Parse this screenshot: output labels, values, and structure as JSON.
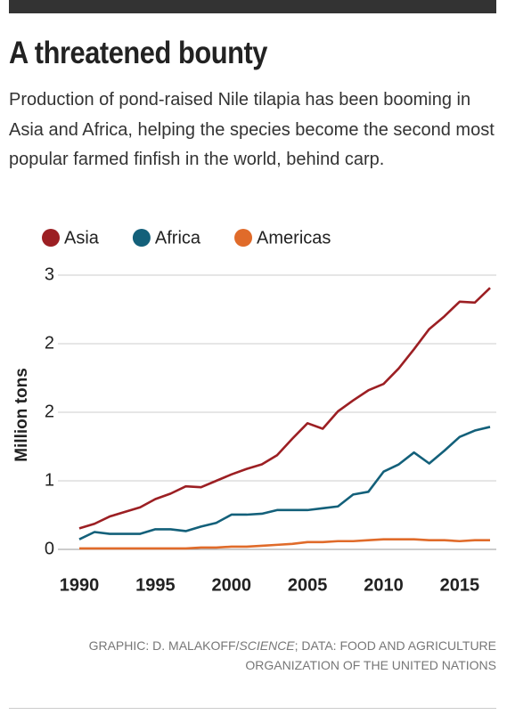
{
  "chart_data": {
    "type": "line",
    "title": "A threatened bounty",
    "subtitle": "Production of pond-raised Nile tilapia has been booming in Asia and Africa, helping the species become the second most popular farmed finfish in the world, behind carp.",
    "y_label": "Million tons",
    "credit": [
      "GRAPHIC: D. MALAKOFF/",
      "SCIENCE",
      "; DATA: FOOD AND AGRICULTURE",
      "ORGANIZATION OF THE UNITED NATIONS"
    ],
    "x": [
      1990,
      1991,
      1992,
      1993,
      1994,
      1995,
      1996,
      1997,
      1998,
      1999,
      2000,
      2001,
      2002,
      2003,
      2004,
      2005,
      2006,
      2007,
      2008,
      2009,
      2010,
      2011,
      2012,
      2013,
      2014,
      2015,
      2016,
      2017
    ],
    "series": [
      {
        "name": "Asia",
        "color": "#9c1f23",
        "values": [
          0.23,
          0.28,
          0.36,
          0.41,
          0.46,
          0.55,
          0.61,
          0.69,
          0.68,
          0.75,
          0.82,
          0.88,
          0.93,
          1.03,
          1.21,
          1.38,
          1.32,
          1.51,
          1.63,
          1.74,
          1.81,
          1.98,
          2.19,
          2.41,
          2.55,
          2.71,
          2.7,
          2.86
        ]
      },
      {
        "name": "Africa",
        "color": "#13607a",
        "values": [
          0.11,
          0.19,
          0.17,
          0.17,
          0.17,
          0.22,
          0.22,
          0.2,
          0.25,
          0.29,
          0.38,
          0.38,
          0.39,
          0.43,
          0.43,
          0.43,
          0.45,
          0.47,
          0.6,
          0.63,
          0.85,
          0.93,
          1.06,
          0.94,
          1.08,
          1.23,
          1.3,
          1.34
        ]
      },
      {
        "name": "Americas",
        "color": "#e06b2a",
        "values": [
          0.01,
          0.01,
          0.01,
          0.01,
          0.01,
          0.01,
          0.01,
          0.01,
          0.02,
          0.02,
          0.03,
          0.03,
          0.04,
          0.05,
          0.06,
          0.08,
          0.08,
          0.09,
          0.09,
          0.1,
          0.11,
          0.11,
          0.11,
          0.1,
          0.1,
          0.09,
          0.1,
          0.1
        ]
      }
    ],
    "xlim": [
      1990,
      2017
    ],
    "xticks": [
      1990,
      1995,
      2000,
      2005,
      2010,
      2015
    ],
    "ylim": [
      0,
      3
    ],
    "yticks": [
      0,
      {
        "value": 0.75,
        "label": "1"
      },
      {
        "value": 1.5,
        "label": "2"
      },
      {
        "value": 2.25,
        "label": "2"
      },
      3
    ],
    "grid": true
  }
}
